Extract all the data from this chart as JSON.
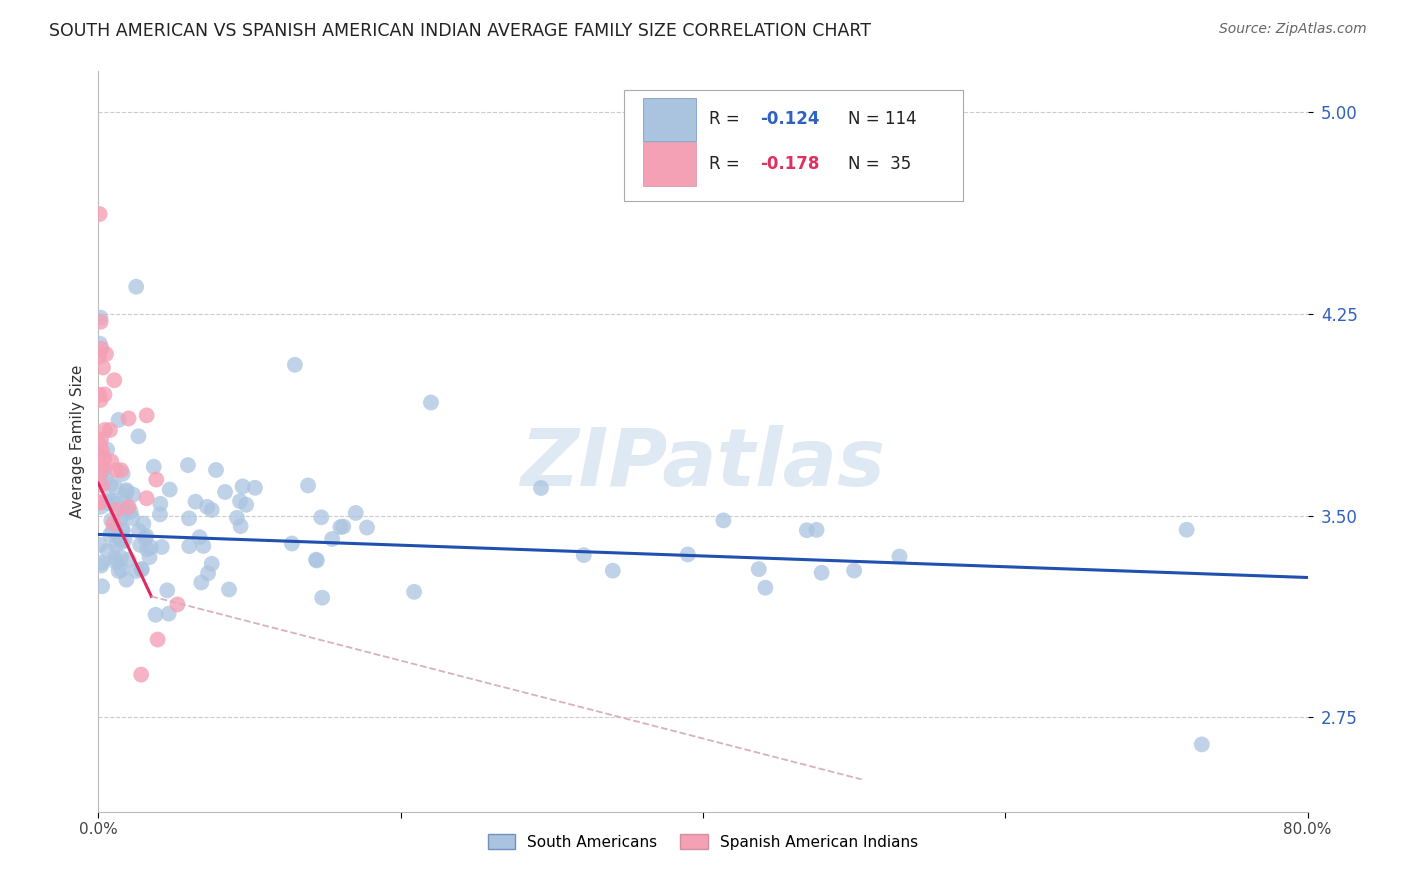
{
  "title": "SOUTH AMERICAN VS SPANISH AMERICAN INDIAN AVERAGE FAMILY SIZE CORRELATION CHART",
  "source": "Source: ZipAtlas.com",
  "ylabel": "Average Family Size",
  "xlim": [
    0.0,
    0.8
  ],
  "ylim": [
    2.4,
    5.15
  ],
  "yticks": [
    2.75,
    3.5,
    4.25,
    5.0
  ],
  "xticks": [
    0.0,
    0.2,
    0.4,
    0.6,
    0.8
  ],
  "xticklabels": [
    "0.0%",
    "",
    "",
    "",
    "80.0%"
  ],
  "background_color": "#ffffff",
  "grid_color": "#cccccc",
  "watermark": "ZIPatlas",
  "blue_color": "#aac4e0",
  "pink_color": "#f4a0b5",
  "blue_line_color": "#2050b0",
  "pink_line_color": "#e02860",
  "pink_dash_color": "#d8b0c0",
  "legend_label1": "South Americans",
  "legend_label2": "Spanish American Indians",
  "blue_R": "-0.124",
  "blue_N": "114",
  "pink_R": "-0.178",
  "pink_N": "35"
}
